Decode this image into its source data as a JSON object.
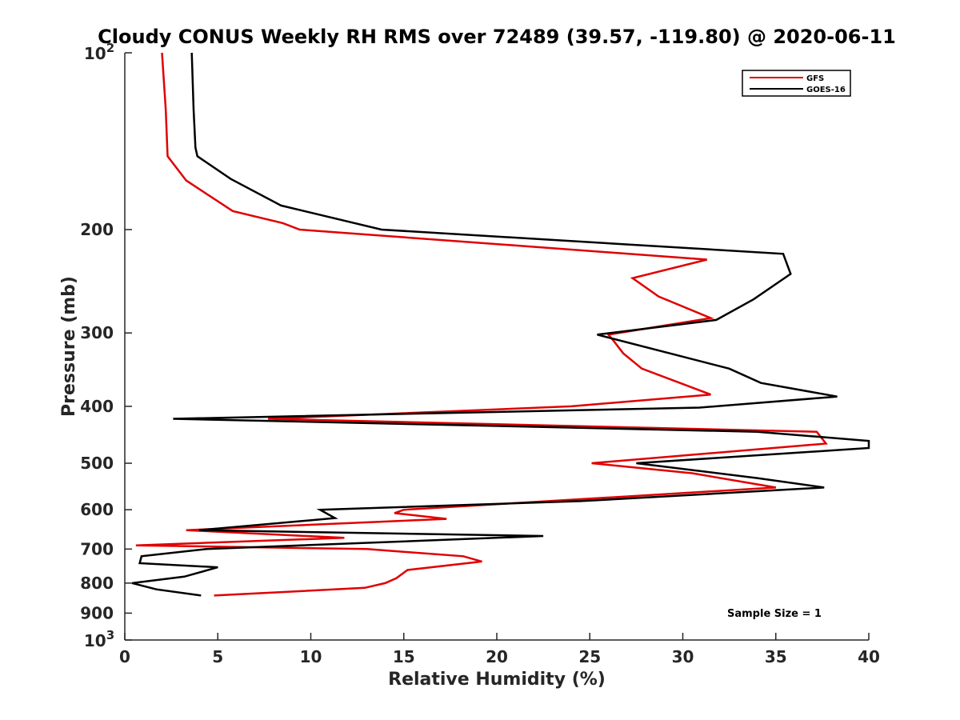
{
  "chart_data": {
    "type": "line",
    "title": "Cloudy CONUS Weekly RH RMS over 72489 (39.57, -119.80) @ 2020-06-11",
    "xlabel": "Relative Humidity (%)",
    "ylabel": "Pressure (mb)",
    "xlim": [
      0,
      40
    ],
    "ylim": [
      100,
      1000
    ],
    "y_scale": "log",
    "y_reversed": true,
    "x_ticks": [
      "0",
      "5",
      "10",
      "15",
      "20",
      "25",
      "30",
      "35",
      "40"
    ],
    "y_ticks": [
      {
        "value": 100,
        "base": "10",
        "exp": "2"
      },
      {
        "value": 200,
        "label": "200"
      },
      {
        "value": 300,
        "label": "300"
      },
      {
        "value": 400,
        "label": "400"
      },
      {
        "value": 500,
        "label": "500"
      },
      {
        "value": 600,
        "label": "600"
      },
      {
        "value": 700,
        "label": "700"
      },
      {
        "value": 800,
        "label": "800"
      },
      {
        "value": 900,
        "label": "900"
      },
      {
        "value": 1000,
        "base": "10",
        "exp": "3"
      }
    ],
    "legend": {
      "position": "top-right"
    },
    "annotation": "Sample Size = 1",
    "series": [
      {
        "name": "GFS",
        "color": "#e00000",
        "points": [
          [
            2.0,
            100
          ],
          [
            2.2,
            125
          ],
          [
            2.3,
            150
          ],
          [
            3.3,
            165
          ],
          [
            5.8,
            186
          ],
          [
            8.5,
            195
          ],
          [
            9.4,
            200
          ],
          [
            31.3,
            225
          ],
          [
            27.3,
            242
          ],
          [
            28.7,
            260
          ],
          [
            31.5,
            283
          ],
          [
            26.0,
            302
          ],
          [
            26.3,
            310
          ],
          [
            26.8,
            325
          ],
          [
            27.8,
            345
          ],
          [
            31.5,
            382
          ],
          [
            24.0,
            400
          ],
          [
            7.7,
            420
          ],
          [
            37.2,
            442
          ],
          [
            37.7,
            463
          ],
          [
            25.1,
            500
          ],
          [
            30.5,
            520
          ],
          [
            35.0,
            550
          ],
          [
            15.0,
            600
          ],
          [
            14.5,
            608
          ],
          [
            17.3,
            622
          ],
          [
            3.3,
            650
          ],
          [
            11.8,
            670
          ],
          [
            0.6,
            690
          ],
          [
            13.0,
            700
          ],
          [
            18.2,
            720
          ],
          [
            19.2,
            735
          ],
          [
            15.2,
            760
          ],
          [
            14.6,
            785
          ],
          [
            14.0,
            800
          ],
          [
            12.9,
            815
          ],
          [
            4.8,
            840
          ]
        ]
      },
      {
        "name": "GOES-16",
        "color": "#000000",
        "points": [
          [
            3.6,
            100
          ],
          [
            3.7,
            125
          ],
          [
            3.8,
            145
          ],
          [
            3.9,
            150
          ],
          [
            5.7,
            164
          ],
          [
            8.4,
            182
          ],
          [
            13.8,
            200
          ],
          [
            35.4,
            220
          ],
          [
            35.8,
            238
          ],
          [
            33.8,
            263
          ],
          [
            31.8,
            285
          ],
          [
            25.4,
            302
          ],
          [
            32.5,
            345
          ],
          [
            34.2,
            365
          ],
          [
            38.3,
            385
          ],
          [
            30.9,
            402
          ],
          [
            2.6,
            420
          ],
          [
            34.0,
            442
          ],
          [
            40.0,
            458
          ],
          [
            40.0,
            471
          ],
          [
            27.5,
            500
          ],
          [
            34.0,
            530
          ],
          [
            37.6,
            550
          ],
          [
            24.5,
            580
          ],
          [
            10.5,
            600
          ],
          [
            11.3,
            620
          ],
          [
            4.0,
            650
          ],
          [
            22.5,
            665
          ],
          [
            4.4,
            700
          ],
          [
            0.9,
            720
          ],
          [
            0.8,
            740
          ],
          [
            5.0,
            752
          ],
          [
            3.2,
            780
          ],
          [
            0.4,
            800
          ],
          [
            1.7,
            820
          ],
          [
            4.1,
            840
          ]
        ]
      }
    ]
  }
}
